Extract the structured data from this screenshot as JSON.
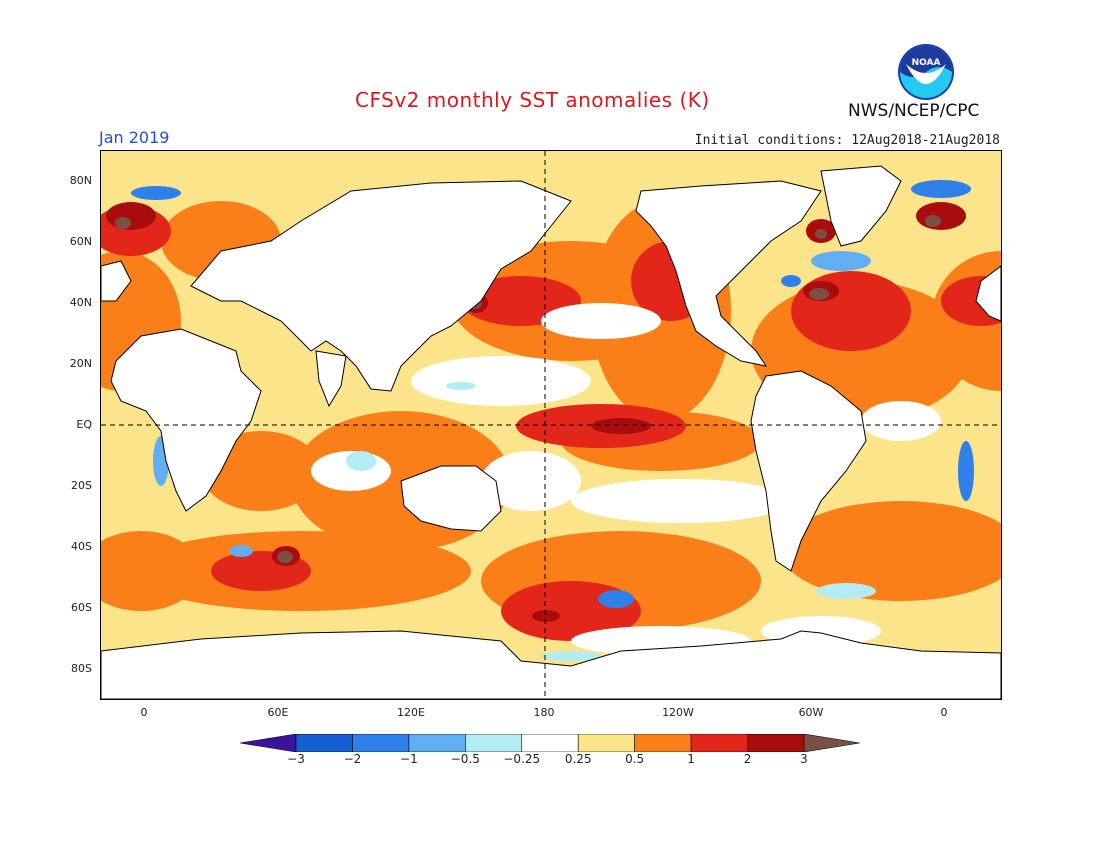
{
  "header": {
    "title": "CFSv2 monthly SST anomalies (K)",
    "month": "Jan 2019",
    "initial_conditions": "Initial conditions: 12Aug2018-21Aug2018",
    "agency": "NWS/NCEP/CPC",
    "logo_text": "NOAA"
  },
  "axes": {
    "lat_labels": [
      "80N",
      "60N",
      "40N",
      "20N",
      "EQ",
      "20S",
      "40S",
      "60S",
      "80S"
    ],
    "lon_labels": [
      "0",
      "60E",
      "120E",
      "180",
      "120W",
      "60W",
      "0"
    ]
  },
  "colorbar": {
    "labels": [
      "-3",
      "-2",
      "-1",
      "-0.5",
      "-0.25",
      "0.25",
      "0.5",
      "1",
      "2",
      "3"
    ],
    "colors": [
      "#3a14a0",
      "#1560d0",
      "#2f80e8",
      "#62aef2",
      "#b4ecf4",
      "#ffffff",
      "#fbe48a",
      "#fb7f18",
      "#e3261a",
      "#a80c0c",
      "#7a5046"
    ]
  },
  "legend_colors": {
    "land": "#ffffff",
    "coastline": "#000000"
  }
}
